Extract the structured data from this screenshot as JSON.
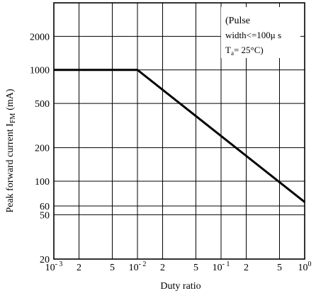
{
  "chart_data": {
    "type": "line",
    "title": "",
    "xlabel": "Duty ratio",
    "ylabel": {
      "main": "Peak forward current I",
      "sub": "FM",
      "unit": "(mA)"
    },
    "x_scale": "log",
    "y_scale": "log",
    "xlim": [
      0.001,
      1
    ],
    "ylim": [
      20,
      4000
    ],
    "grid": true,
    "x_ticks": [
      {
        "value": 0.001,
        "base": "10",
        "exp": "- 3"
      },
      {
        "value": 0.002,
        "label": "2"
      },
      {
        "value": 0.005,
        "label": "5"
      },
      {
        "value": 0.01,
        "base": "10",
        "exp": "- 2"
      },
      {
        "value": 0.02,
        "label": "2"
      },
      {
        "value": 0.05,
        "label": "5"
      },
      {
        "value": 0.1,
        "base": "10",
        "exp": "- 1"
      },
      {
        "value": 0.2,
        "label": "2"
      },
      {
        "value": 0.5,
        "label": "5"
      },
      {
        "value": 1,
        "base": "10",
        "exp": "0"
      }
    ],
    "y_ticks": [
      {
        "value": 2000,
        "label": "2000"
      },
      {
        "value": 1000,
        "label": "1000"
      },
      {
        "value": 500,
        "label": "500"
      },
      {
        "value": 200,
        "label": "200"
      },
      {
        "value": 100,
        "label": "100"
      },
      {
        "value": 60,
        "label": "60"
      },
      {
        "value": 50,
        "label": "50"
      },
      {
        "value": 20,
        "label": "20"
      }
    ],
    "series": [
      {
        "x": [
          0.001,
          0.01,
          1
        ],
        "y": [
          1000,
          1000,
          65
        ]
      }
    ],
    "annotation": {
      "line1": "(Pulse",
      "line2": "width<=100μ s",
      "line3_main": "T",
      "line3_sub": "a",
      "line3_rest": "= 25°C)"
    }
  }
}
